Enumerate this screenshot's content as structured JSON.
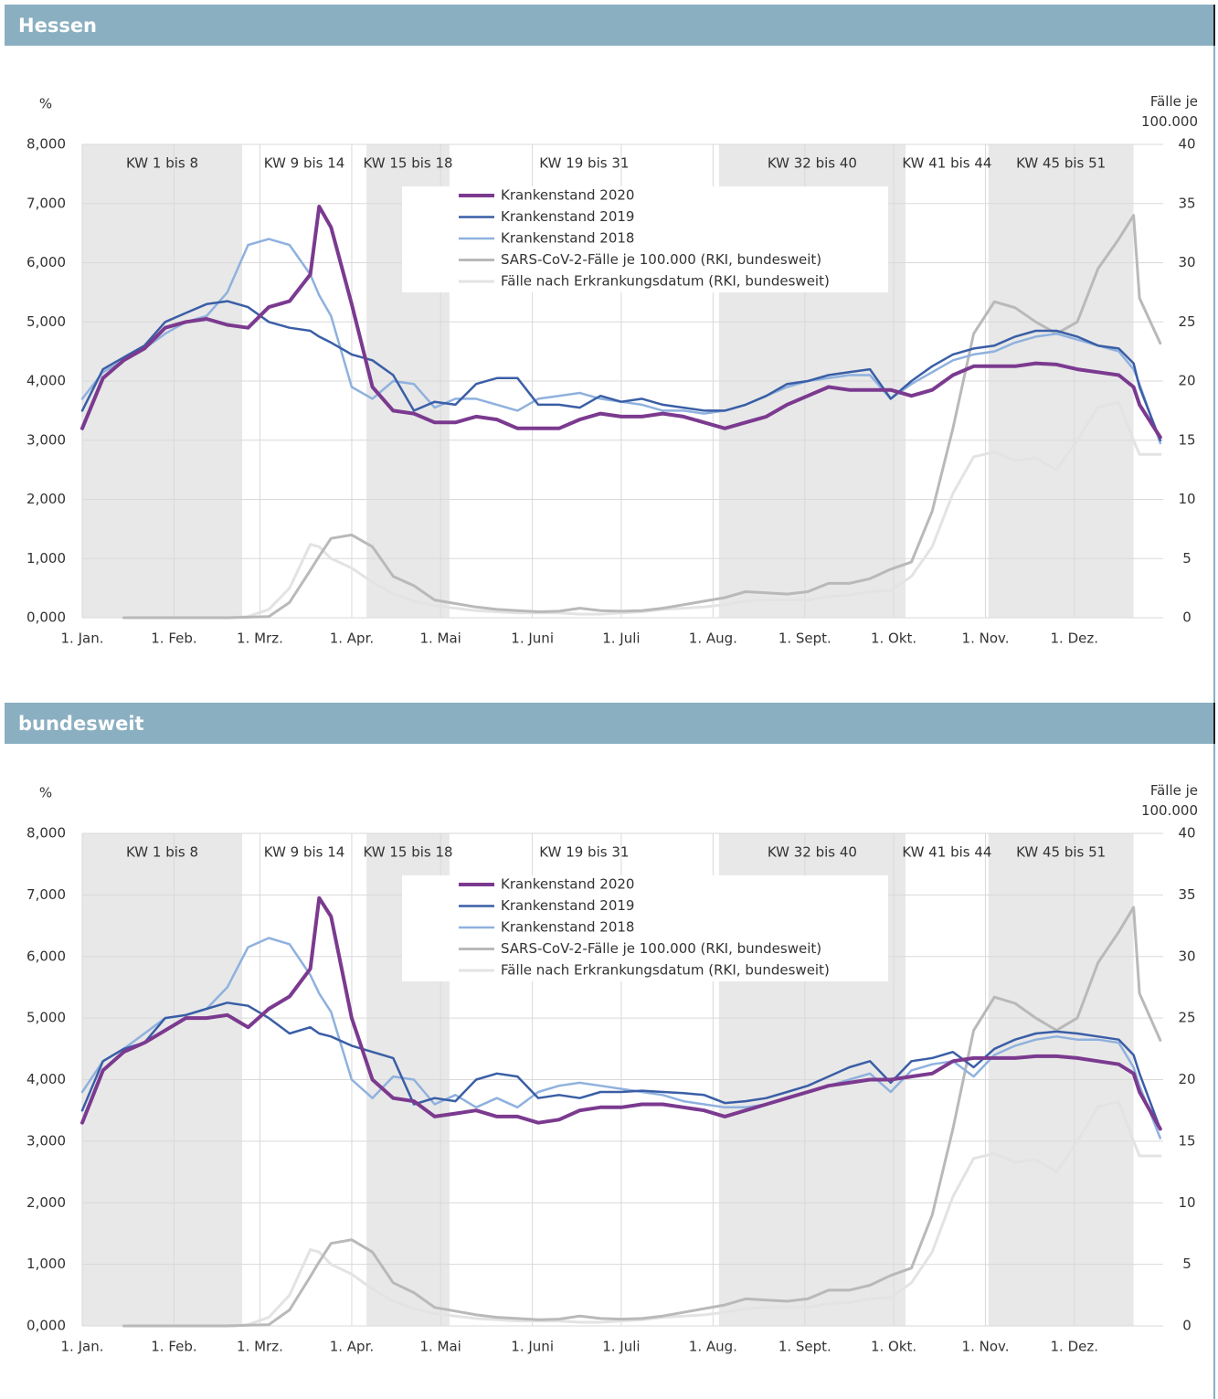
{
  "chart_data": [
    {
      "type": "line",
      "title": "Hessen",
      "ylabel": "%",
      "y2label": "Fälle je 100.000",
      "x": [
        0,
        7,
        14,
        21,
        28,
        35,
        42,
        49,
        56,
        63,
        70,
        77,
        80,
        84,
        91,
        98,
        105,
        112,
        119,
        126,
        133,
        140,
        147,
        154,
        161,
        168,
        175,
        182,
        189,
        196,
        203,
        210,
        217,
        224,
        231,
        238,
        245,
        252,
        259,
        266,
        273,
        280,
        287,
        294,
        301,
        308,
        315,
        322,
        329,
        336,
        343,
        350,
        355,
        357,
        364
      ],
      "xlim": [
        0,
        365
      ],
      "xticks": [
        {
          "value": 0,
          "label": "1. Jan."
        },
        {
          "value": 31,
          "label": "1. Feb."
        },
        {
          "value": 60,
          "label": "1. Mrz."
        },
        {
          "value": 91,
          "label": "1. Apr."
        },
        {
          "value": 121,
          "label": "1. Mai"
        },
        {
          "value": 152,
          "label": "1. Juni"
        },
        {
          "value": 182,
          "label": "1. Juli"
        },
        {
          "value": 213,
          "label": "1. Aug."
        },
        {
          "value": 244,
          "label": "1. Sept."
        },
        {
          "value": 274,
          "label": "1. Okt."
        },
        {
          "value": 305,
          "label": "1. Nov."
        },
        {
          "value": 335,
          "label": "1. Dez."
        }
      ],
      "ylim": [
        0,
        8
      ],
      "yticks": [
        {
          "value": 0,
          "label": "0,000"
        },
        {
          "value": 1,
          "label": "1,000"
        },
        {
          "value": 2,
          "label": "2,000"
        },
        {
          "value": 3,
          "label": "3,000"
        },
        {
          "value": 4,
          "label": "4,000"
        },
        {
          "value": 5,
          "label": "5,000"
        },
        {
          "value": 6,
          "label": "6,000"
        },
        {
          "value": 7,
          "label": "7,000"
        },
        {
          "value": 8,
          "label": "8,000"
        }
      ],
      "y2lim": [
        0,
        40
      ],
      "y2ticks": [
        0,
        5,
        10,
        15,
        20,
        25,
        30,
        35,
        40
      ],
      "grid": true,
      "periods": [
        {
          "label": "KW 1 bis 8",
          "start": 0,
          "end": 54,
          "shaded": true
        },
        {
          "label": "KW 9 bis 14",
          "start": 54,
          "end": 96,
          "shaded": false
        },
        {
          "label": "KW 15 bis 18",
          "start": 96,
          "end": 124,
          "shaded": true
        },
        {
          "label": "KW 19 bis 31",
          "start": 124,
          "end": 215,
          "shaded": false
        },
        {
          "label": "KW 32 bis 40",
          "start": 215,
          "end": 278,
          "shaded": true
        },
        {
          "label": "KW 41 bis 44",
          "start": 278,
          "end": 306,
          "shaded": false
        },
        {
          "label": "KW 45 bis 51",
          "start": 306,
          "end": 355,
          "shaded": true
        }
      ],
      "series": [
        {
          "name": "Krankenstand 2020",
          "color": "#7b3a8f",
          "values": [
            3.2,
            4.05,
            4.35,
            4.55,
            4.9,
            5.0,
            5.05,
            4.95,
            4.9,
            5.25,
            5.35,
            5.8,
            6.95,
            6.6,
            5.3,
            3.9,
            3.5,
            3.45,
            3.3,
            3.3,
            3.4,
            3.35,
            3.2,
            3.2,
            3.2,
            3.35,
            3.45,
            3.4,
            3.4,
            3.45,
            3.4,
            3.3,
            3.2,
            3.3,
            3.4,
            3.6,
            3.75,
            3.9,
            3.85,
            3.85,
            3.85,
            3.75,
            3.85,
            4.1,
            4.25,
            4.25,
            4.25,
            4.3,
            4.28,
            4.2,
            4.15,
            4.1,
            3.9,
            3.6,
            3.05
          ]
        },
        {
          "name": "Krankenstand 2019",
          "color": "#3a5ea6",
          "values": [
            3.5,
            4.2,
            4.4,
            4.6,
            5.0,
            5.15,
            5.3,
            5.35,
            5.25,
            5.0,
            4.9,
            4.85,
            4.75,
            4.65,
            4.45,
            4.35,
            4.1,
            3.5,
            3.65,
            3.6,
            3.95,
            4.05,
            4.05,
            3.6,
            3.6,
            3.55,
            3.75,
            3.65,
            3.7,
            3.6,
            3.55,
            3.5,
            3.5,
            3.6,
            3.75,
            3.95,
            4.0,
            4.1,
            4.15,
            4.2,
            3.7,
            4.0,
            4.25,
            4.45,
            4.55,
            4.6,
            4.75,
            4.85,
            4.85,
            4.75,
            4.6,
            4.55,
            4.3,
            3.9,
            3.0
          ]
        },
        {
          "name": "Krankenstand 2018",
          "color": "#8fb1de",
          "values": [
            3.7,
            4.15,
            4.35,
            4.55,
            4.8,
            5.0,
            5.1,
            5.5,
            6.3,
            6.4,
            6.3,
            5.8,
            5.45,
            5.1,
            3.9,
            3.7,
            4.0,
            3.95,
            3.55,
            3.7,
            3.7,
            3.6,
            3.5,
            3.7,
            3.75,
            3.8,
            3.7,
            3.65,
            3.6,
            3.5,
            3.5,
            3.45,
            3.5,
            3.6,
            3.75,
            3.9,
            4.0,
            4.05,
            4.1,
            4.1,
            3.7,
            3.95,
            4.15,
            4.35,
            4.45,
            4.5,
            4.65,
            4.75,
            4.8,
            4.7,
            4.6,
            4.5,
            4.2,
            3.95,
            2.95
          ]
        },
        {
          "name": "SARS-CoV-2-Fälle je 100.000 (RKI, bundesweit)",
          "color": "#b9b9b9",
          "axis": "y2",
          "values": [
            null,
            null,
            0,
            0,
            0,
            0,
            0,
            0,
            0.05,
            0.1,
            1.3,
            4.0,
            5.2,
            6.7,
            7.0,
            6.0,
            3.5,
            2.7,
            1.5,
            1.2,
            0.9,
            0.7,
            0.6,
            0.5,
            0.55,
            0.8,
            0.6,
            0.55,
            0.6,
            0.8,
            1.1,
            1.4,
            1.7,
            2.2,
            2.1,
            2.0,
            2.2,
            2.9,
            2.9,
            3.3,
            4.1,
            4.7,
            9.0,
            16.0,
            24.0,
            26.7,
            26.2,
            25.0,
            24.0,
            25.0,
            29.5,
            32.0,
            34.0,
            27.0,
            23.2
          ]
        },
        {
          "name": "Fälle nach Erkrankungsdatum (RKI, bundesweit)",
          "color": "#e3e3e3",
          "axis": "y2",
          "values": [
            null,
            null,
            0,
            0,
            0,
            0,
            0,
            0,
            0.1,
            0.7,
            2.5,
            6.2,
            6.0,
            5.0,
            4.2,
            3.0,
            2.0,
            1.4,
            1.0,
            0.8,
            0.6,
            0.5,
            0.4,
            0.4,
            0.4,
            0.3,
            0.3,
            0.4,
            0.5,
            0.7,
            0.8,
            0.9,
            1.1,
            1.4,
            1.5,
            1.5,
            1.5,
            1.8,
            1.9,
            2.2,
            2.3,
            3.5,
            6.0,
            10.5,
            13.6,
            14.0,
            13.3,
            13.5,
            12.5,
            15.0,
            17.8,
            18.2,
            15.0,
            13.8,
            13.8
          ]
        }
      ]
    },
    {
      "type": "line",
      "title": "bundesweit",
      "ylabel": "%",
      "y2label": "Fälle je 100.000",
      "x": [
        0,
        7,
        14,
        21,
        28,
        35,
        42,
        49,
        56,
        63,
        70,
        77,
        80,
        84,
        91,
        98,
        105,
        112,
        119,
        126,
        133,
        140,
        147,
        154,
        161,
        168,
        175,
        182,
        189,
        196,
        203,
        210,
        217,
        224,
        231,
        238,
        245,
        252,
        259,
        266,
        273,
        280,
        287,
        294,
        301,
        308,
        315,
        322,
        329,
        336,
        343,
        350,
        355,
        357,
        364
      ],
      "xlim": [
        0,
        365
      ],
      "xticks": [
        {
          "value": 0,
          "label": "1. Jan."
        },
        {
          "value": 31,
          "label": "1. Feb."
        },
        {
          "value": 60,
          "label": "1. Mrz."
        },
        {
          "value": 91,
          "label": "1. Apr."
        },
        {
          "value": 121,
          "label": "1. Mai"
        },
        {
          "value": 152,
          "label": "1. Juni"
        },
        {
          "value": 182,
          "label": "1. Juli"
        },
        {
          "value": 213,
          "label": "1. Aug."
        },
        {
          "value": 244,
          "label": "1. Sept."
        },
        {
          "value": 274,
          "label": "1. Okt."
        },
        {
          "value": 305,
          "label": "1. Nov."
        },
        {
          "value": 335,
          "label": "1. Dez."
        }
      ],
      "ylim": [
        0,
        8
      ],
      "yticks": [
        {
          "value": 0,
          "label": "0,000"
        },
        {
          "value": 1,
          "label": "1,000"
        },
        {
          "value": 2,
          "label": "2,000"
        },
        {
          "value": 3,
          "label": "3,000"
        },
        {
          "value": 4,
          "label": "4,000"
        },
        {
          "value": 5,
          "label": "5,000"
        },
        {
          "value": 6,
          "label": "6,000"
        },
        {
          "value": 7,
          "label": "7,000"
        },
        {
          "value": 8,
          "label": "8,000"
        }
      ],
      "y2lim": [
        0,
        40
      ],
      "y2ticks": [
        0,
        5,
        10,
        15,
        20,
        25,
        30,
        35,
        40
      ],
      "grid": true,
      "periods": [
        {
          "label": "KW 1 bis 8",
          "start": 0,
          "end": 54,
          "shaded": true
        },
        {
          "label": "KW 9 bis 14",
          "start": 54,
          "end": 96,
          "shaded": false
        },
        {
          "label": "KW 15 bis 18",
          "start": 96,
          "end": 124,
          "shaded": true
        },
        {
          "label": "KW 19 bis 31",
          "start": 124,
          "end": 215,
          "shaded": false
        },
        {
          "label": "KW 32 bis 40",
          "start": 215,
          "end": 278,
          "shaded": true
        },
        {
          "label": "KW 41 bis 44",
          "start": 278,
          "end": 306,
          "shaded": false
        },
        {
          "label": "KW 45 bis 51",
          "start": 306,
          "end": 355,
          "shaded": true
        }
      ],
      "series": [
        {
          "name": "Krankenstand 2020",
          "color": "#7b3a8f",
          "values": [
            3.3,
            4.15,
            4.45,
            4.6,
            4.8,
            5.0,
            5.0,
            5.05,
            4.85,
            5.15,
            5.35,
            5.8,
            6.95,
            6.65,
            5.0,
            4.0,
            3.7,
            3.65,
            3.4,
            3.45,
            3.5,
            3.4,
            3.4,
            3.3,
            3.35,
            3.5,
            3.55,
            3.55,
            3.6,
            3.6,
            3.55,
            3.5,
            3.4,
            3.5,
            3.6,
            3.7,
            3.8,
            3.9,
            3.95,
            4.0,
            4.0,
            4.05,
            4.1,
            4.3,
            4.35,
            4.35,
            4.35,
            4.38,
            4.38,
            4.35,
            4.3,
            4.25,
            4.1,
            3.8,
            3.2
          ]
        },
        {
          "name": "Krankenstand 2019",
          "color": "#3a5ea6",
          "values": [
            3.5,
            4.3,
            4.5,
            4.6,
            5.0,
            5.05,
            5.15,
            5.25,
            5.2,
            5.0,
            4.75,
            4.85,
            4.75,
            4.7,
            4.55,
            4.45,
            4.35,
            3.6,
            3.7,
            3.65,
            4.0,
            4.1,
            4.05,
            3.7,
            3.75,
            3.7,
            3.8,
            3.8,
            3.82,
            3.8,
            3.78,
            3.75,
            3.62,
            3.65,
            3.7,
            3.8,
            3.9,
            4.05,
            4.2,
            4.3,
            3.95,
            4.3,
            4.35,
            4.45,
            4.2,
            4.5,
            4.65,
            4.75,
            4.78,
            4.75,
            4.7,
            4.65,
            4.4,
            4.1,
            3.2
          ]
        },
        {
          "name": "Krankenstand 2018",
          "color": "#8fb1de",
          "values": [
            3.8,
            4.3,
            4.5,
            4.75,
            5.0,
            5.05,
            5.15,
            5.5,
            6.15,
            6.3,
            6.2,
            5.7,
            5.4,
            5.1,
            4.0,
            3.7,
            4.05,
            4.0,
            3.6,
            3.75,
            3.55,
            3.7,
            3.55,
            3.8,
            3.9,
            3.95,
            3.9,
            3.85,
            3.8,
            3.75,
            3.65,
            3.6,
            3.55,
            3.55,
            3.6,
            3.7,
            3.8,
            3.9,
            4.0,
            4.1,
            3.8,
            4.15,
            4.25,
            4.3,
            4.05,
            4.4,
            4.55,
            4.65,
            4.7,
            4.65,
            4.65,
            4.6,
            4.2,
            3.9,
            3.05
          ]
        },
        {
          "name": "SARS-CoV-2-Fälle je 100.000 (RKI, bundesweit)",
          "color": "#b9b9b9",
          "axis": "y2",
          "values": [
            null,
            null,
            0,
            0,
            0,
            0,
            0,
            0,
            0.05,
            0.1,
            1.3,
            4.0,
            5.2,
            6.7,
            7.0,
            6.0,
            3.5,
            2.7,
            1.5,
            1.2,
            0.9,
            0.7,
            0.6,
            0.5,
            0.55,
            0.8,
            0.6,
            0.55,
            0.6,
            0.8,
            1.1,
            1.4,
            1.7,
            2.2,
            2.1,
            2.0,
            2.2,
            2.9,
            2.9,
            3.3,
            4.1,
            4.7,
            9.0,
            16.0,
            24.0,
            26.7,
            26.2,
            25.0,
            24.0,
            25.0,
            29.5,
            32.0,
            34.0,
            27.0,
            23.2
          ]
        },
        {
          "name": "Fälle nach Erkrankungsdatum (RKI, bundesweit)",
          "color": "#e3e3e3",
          "axis": "y2",
          "values": [
            null,
            null,
            0,
            0,
            0,
            0,
            0,
            0,
            0.1,
            0.7,
            2.5,
            6.2,
            6.0,
            5.0,
            4.2,
            3.0,
            2.0,
            1.4,
            1.0,
            0.8,
            0.6,
            0.5,
            0.4,
            0.4,
            0.4,
            0.3,
            0.3,
            0.4,
            0.5,
            0.7,
            0.8,
            0.9,
            1.1,
            1.4,
            1.5,
            1.5,
            1.5,
            1.8,
            1.9,
            2.2,
            2.3,
            3.5,
            6.0,
            10.5,
            13.6,
            14.0,
            13.3,
            13.5,
            12.5,
            15.0,
            17.8,
            18.2,
            15.0,
            13.8,
            13.8
          ]
        }
      ]
    }
  ]
}
